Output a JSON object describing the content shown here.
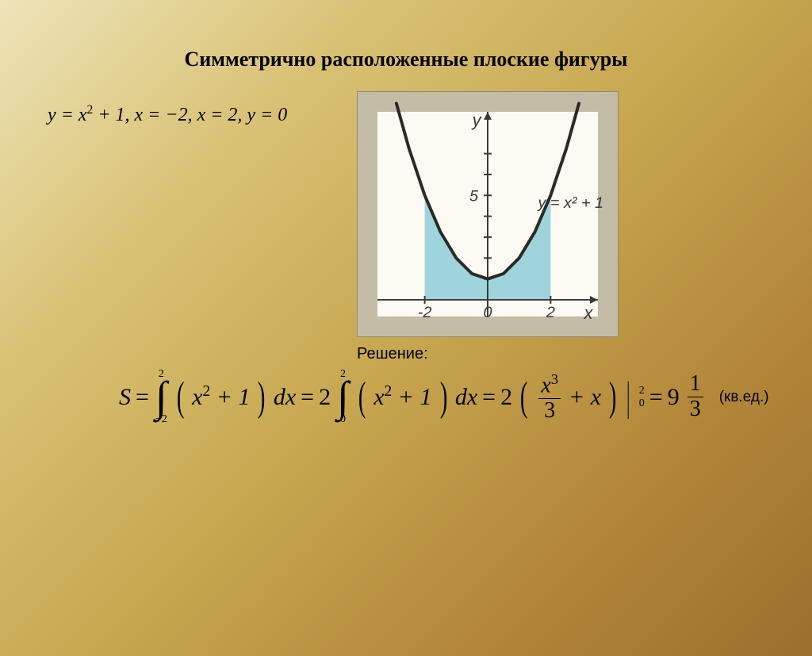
{
  "title": "Симметрично расположенные плоские фигуры",
  "formula_top": "y = x² + 1, x = −2, x = 2, y = 0",
  "solution_label": "Решение:",
  "units": "(кв.ед.)",
  "chart": {
    "type": "function-plot",
    "background_color": "#fcfaf2",
    "frame_color": "#c3bda8",
    "axis_color": "#3a3836",
    "curve_color": "#2b2926",
    "curve_width": 4,
    "fill_color": "#9fd4dd",
    "x_label": "x",
    "y_label": "y",
    "func_label": "y = x² + 1",
    "xlim": [
      -3.5,
      3.5
    ],
    "ylim": [
      -0.8,
      9
    ],
    "x_ticks": [
      -2,
      0,
      2
    ],
    "x_tick_labels": [
      "-2",
      "0",
      "2"
    ],
    "y_ticks": [
      1,
      2,
      3,
      4,
      5,
      6,
      7
    ],
    "y_tick_labels": {
      "5": "5"
    },
    "fill_bounds": {
      "x_from": -2,
      "x_to": 2
    },
    "curve_points": [
      {
        "x": -2.9,
        "y": 9.4
      },
      {
        "x": -2.5,
        "y": 7.25
      },
      {
        "x": -2.0,
        "y": 5.0
      },
      {
        "x": -1.5,
        "y": 3.25
      },
      {
        "x": -1.0,
        "y": 2.0
      },
      {
        "x": -0.5,
        "y": 1.25
      },
      {
        "x": 0.0,
        "y": 1.0
      },
      {
        "x": 0.5,
        "y": 1.25
      },
      {
        "x": 1.0,
        "y": 2.0
      },
      {
        "x": 1.5,
        "y": 3.25
      },
      {
        "x": 2.0,
        "y": 5.0
      },
      {
        "x": 2.5,
        "y": 7.25
      },
      {
        "x": 2.9,
        "y": 9.4
      }
    ]
  },
  "solution": {
    "S": "S",
    "eq": "=",
    "int1": {
      "lower": "−2",
      "upper": "2"
    },
    "expr1": "x² + 1",
    "dx": "dx",
    "coef2": "2",
    "int2": {
      "lower": "0",
      "upper": "2"
    },
    "expr2": "x² + 1",
    "frac_x3": {
      "num": "x³",
      "den": "3"
    },
    "plus_x": "+ x",
    "eval": {
      "upper": "2",
      "lower": "0"
    },
    "result_int": "9",
    "result_frac": {
      "num": "1",
      "den": "3"
    }
  }
}
